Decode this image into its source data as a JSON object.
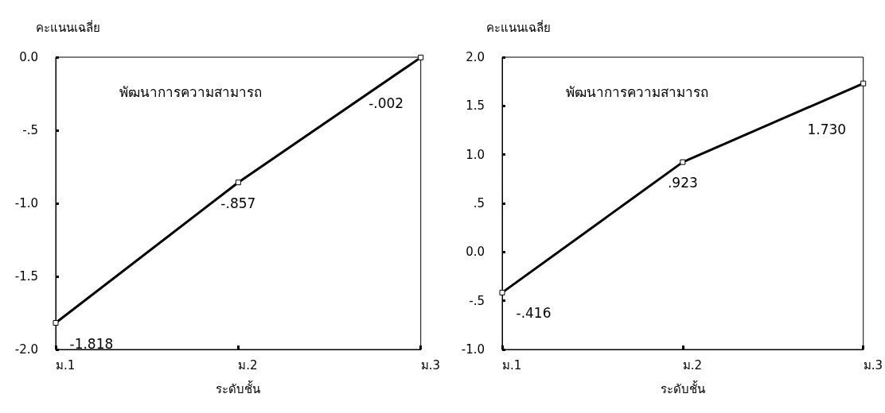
{
  "chart_data": [
    {
      "type": "line",
      "title": "พัฒนาการความสามารถ",
      "xlabel": "ระดับชั้น",
      "ylabel": "คะแนนเฉลี่ย",
      "categories": [
        "ม.1",
        "ม.2",
        "ม.3"
      ],
      "series": [
        {
          "color": "#000000",
          "values": [
            -1.818,
            -0.857,
            -0.002
          ],
          "value_labels": [
            "-1.818",
            "-.857",
            "-.002"
          ]
        }
      ],
      "ylim": [
        -2.0,
        0.0
      ],
      "yticks": [
        {
          "value": -2.0,
          "label": "-2.0"
        },
        {
          "value": -1.5,
          "label": "-1.5"
        },
        {
          "value": -1.0,
          "label": "-1.0"
        },
        {
          "value": -0.5,
          "label": "-.5"
        },
        {
          "value": 0.0,
          "label": "0.0"
        }
      ],
      "marker": "square",
      "line_style": "solid",
      "grid": false
    },
    {
      "type": "line",
      "title": "พัฒนาการความสามารถ",
      "xlabel": "ระดับชั้น",
      "ylabel": "คะแนนเฉลี่ย",
      "categories": [
        "ม.1",
        "ม.2",
        "ม.3"
      ],
      "series": [
        {
          "color": "#000000",
          "values": [
            -0.416,
            0.923,
            1.73
          ],
          "value_labels": [
            "-.416",
            ".923",
            "1.730"
          ]
        }
      ],
      "ylim": [
        -1.0,
        2.0
      ],
      "yticks": [
        {
          "value": -1.0,
          "label": "-1.0"
        },
        {
          "value": -0.5,
          "label": "-.5"
        },
        {
          "value": 0.0,
          "label": "0.0"
        },
        {
          "value": 0.5,
          "label": ".5"
        },
        {
          "value": 1.0,
          "label": "1.0"
        },
        {
          "value": 1.5,
          "label": "1.5"
        },
        {
          "value": 2.0,
          "label": "2.0"
        }
      ],
      "marker": "square",
      "line_style": "solid",
      "grid": false
    }
  ]
}
